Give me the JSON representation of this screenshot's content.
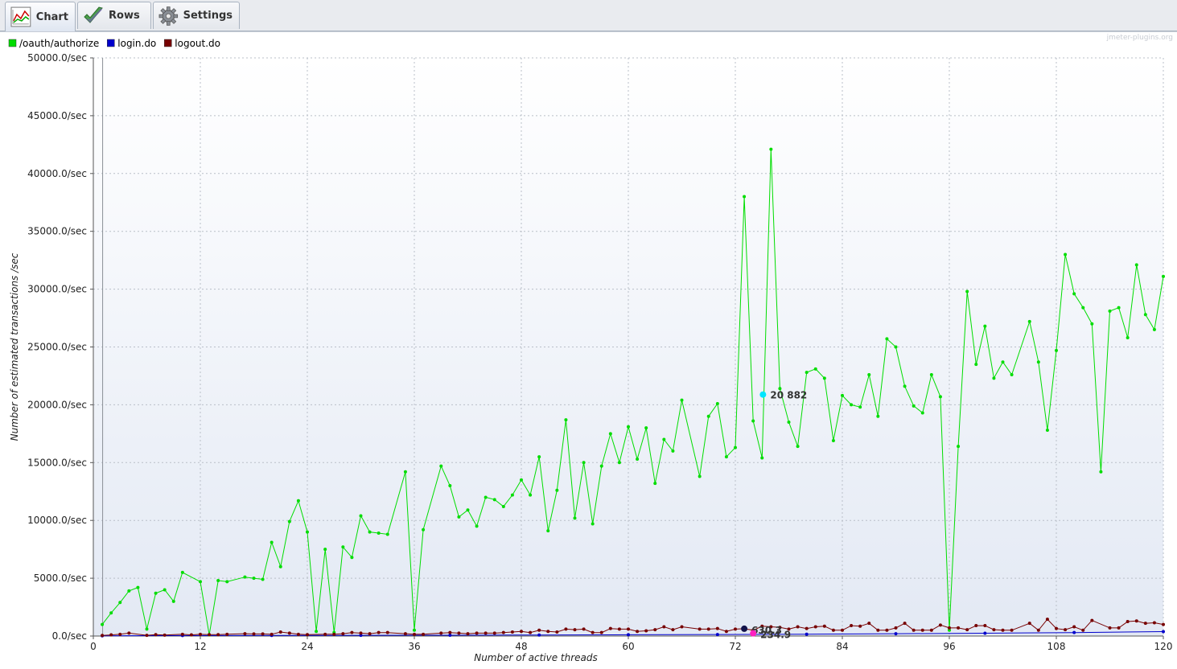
{
  "tabs": [
    {
      "label": "Chart",
      "icon": "chart-icon",
      "active": true
    },
    {
      "label": "Rows",
      "icon": "checkmark-icon",
      "active": false
    },
    {
      "label": "Settings",
      "icon": "gear-icon",
      "active": false
    }
  ],
  "watermark": "jmeter-plugins.org",
  "colors": {
    "authorize": "#00dd00",
    "login": "#0000cc",
    "logout": "#770000",
    "marker_cyan": "#00e5ff",
    "marker_navy": "#12124a",
    "marker_magenta": "#ff20c0"
  },
  "hover_labels": {
    "green": "20 882",
    "navy": "630.3",
    "magenta": "234.9"
  },
  "chart_data": {
    "type": "line",
    "xlabel": "Number of active threads",
    "ylabel": "Number of estimated transactions /sec",
    "xlim": [
      0,
      120
    ],
    "ylim": [
      0,
      50000
    ],
    "x_ticks": [
      0,
      12,
      24,
      36,
      48,
      60,
      72,
      84,
      96,
      108,
      120
    ],
    "y_ticks": [
      "0.0/sec",
      "5000.0/sec",
      "10000.0/sec",
      "15000.0/sec",
      "20000.0/sec",
      "25000.0/sec",
      "30000.0/sec",
      "35000.0/sec",
      "40000.0/sec",
      "45000.0/sec",
      "50000.0/sec"
    ],
    "grid": true,
    "legend_position": "top-left",
    "series": [
      {
        "name": "/oauth/authorize",
        "color": "#00dd00",
        "points": [
          [
            1,
            1000
          ],
          [
            2,
            2000
          ],
          [
            3,
            2900
          ],
          [
            4,
            3900
          ],
          [
            5,
            4200
          ],
          [
            6,
            600
          ],
          [
            7,
            3700
          ],
          [
            8,
            4000
          ],
          [
            9,
            3000
          ],
          [
            10,
            5500
          ],
          [
            12,
            4700
          ],
          [
            13,
            100
          ],
          [
            14,
            4800
          ],
          [
            15,
            4700
          ],
          [
            17,
            5100
          ],
          [
            18,
            5000
          ],
          [
            19,
            4900
          ],
          [
            20,
            8100
          ],
          [
            21,
            6000
          ],
          [
            22,
            9900
          ],
          [
            23,
            11700
          ],
          [
            24,
            9000
          ],
          [
            25,
            400
          ],
          [
            26,
            7500
          ],
          [
            27,
            300
          ],
          [
            28,
            7700
          ],
          [
            29,
            6800
          ],
          [
            30,
            10400
          ],
          [
            31,
            9000
          ],
          [
            32,
            8900
          ],
          [
            33,
            8800
          ],
          [
            35,
            14200
          ],
          [
            36,
            500
          ],
          [
            37,
            9200
          ],
          [
            39,
            14700
          ],
          [
            40,
            13000
          ],
          [
            41,
            10300
          ],
          [
            42,
            10900
          ],
          [
            43,
            9500
          ],
          [
            44,
            12000
          ],
          [
            45,
            11800
          ],
          [
            46,
            11200
          ],
          [
            47,
            12200
          ],
          [
            48,
            13500
          ],
          [
            49,
            12200
          ],
          [
            50,
            15500
          ],
          [
            51,
            9100
          ],
          [
            52,
            12600
          ],
          [
            53,
            18700
          ],
          [
            54,
            10200
          ],
          [
            55,
            15000
          ],
          [
            56,
            9700
          ],
          [
            57,
            14700
          ],
          [
            58,
            17500
          ],
          [
            59,
            15000
          ],
          [
            60,
            18100
          ],
          [
            61,
            15300
          ],
          [
            62,
            18000
          ],
          [
            63,
            13200
          ],
          [
            64,
            17000
          ],
          [
            65,
            16000
          ],
          [
            66,
            20400
          ],
          [
            68,
            13800
          ],
          [
            69,
            19000
          ],
          [
            70,
            20100
          ],
          [
            71,
            15500
          ],
          [
            72,
            16300
          ],
          [
            73,
            38000
          ],
          [
            74,
            18600
          ],
          [
            75,
            15400
          ],
          [
            76,
            42100
          ],
          [
            77,
            21400
          ],
          [
            78,
            18500
          ],
          [
            79,
            16400
          ],
          [
            80,
            22800
          ],
          [
            81,
            23100
          ],
          [
            82,
            22300
          ],
          [
            83,
            16900
          ],
          [
            84,
            20800
          ],
          [
            85,
            20000
          ],
          [
            86,
            19800
          ],
          [
            87,
            22600
          ],
          [
            88,
            19000
          ],
          [
            89,
            25700
          ],
          [
            90,
            25000
          ],
          [
            91,
            21600
          ],
          [
            92,
            19900
          ],
          [
            93,
            19300
          ],
          [
            94,
            22600
          ],
          [
            95,
            20700
          ],
          [
            96,
            500
          ],
          [
            97,
            16400
          ],
          [
            98,
            29800
          ],
          [
            99,
            23500
          ],
          [
            100,
            26800
          ],
          [
            101,
            22300
          ],
          [
            102,
            23700
          ],
          [
            103,
            22600
          ],
          [
            105,
            27200
          ],
          [
            106,
            23700
          ],
          [
            107,
            17800
          ],
          [
            108,
            24700
          ],
          [
            109,
            33000
          ],
          [
            110,
            29600
          ],
          [
            111,
            28400
          ],
          [
            112,
            27000
          ],
          [
            113,
            14200
          ],
          [
            114,
            28100
          ],
          [
            115,
            28400
          ],
          [
            116,
            25800
          ],
          [
            117,
            32100
          ],
          [
            118,
            27800
          ],
          [
            119,
            26500
          ],
          [
            120,
            31100
          ]
        ]
      },
      {
        "name": "login.do",
        "color": "#0000cc",
        "points": [
          [
            1,
            20
          ],
          [
            10,
            40
          ],
          [
            20,
            50
          ],
          [
            30,
            60
          ],
          [
            40,
            70
          ],
          [
            50,
            90
          ],
          [
            60,
            110
          ],
          [
            70,
            130
          ],
          [
            80,
            160
          ],
          [
            90,
            200
          ],
          [
            100,
            240
          ],
          [
            110,
            300
          ],
          [
            120,
            380
          ]
        ]
      },
      {
        "name": "logout.do",
        "color": "#770000",
        "points": [
          [
            1,
            50
          ],
          [
            2,
            100
          ],
          [
            3,
            150
          ],
          [
            4,
            250
          ],
          [
            6,
            60
          ],
          [
            7,
            120
          ],
          [
            8,
            80
          ],
          [
            10,
            150
          ],
          [
            11,
            100
          ],
          [
            12,
            150
          ],
          [
            13,
            120
          ],
          [
            14,
            120
          ],
          [
            15,
            150
          ],
          [
            17,
            200
          ],
          [
            18,
            180
          ],
          [
            19,
            180
          ],
          [
            20,
            150
          ],
          [
            21,
            350
          ],
          [
            22,
            250
          ],
          [
            23,
            150
          ],
          [
            24,
            120
          ],
          [
            26,
            150
          ],
          [
            27,
            150
          ],
          [
            28,
            200
          ],
          [
            29,
            300
          ],
          [
            30,
            250
          ],
          [
            31,
            200
          ],
          [
            32,
            300
          ],
          [
            33,
            300
          ],
          [
            35,
            200
          ],
          [
            36,
            150
          ],
          [
            37,
            150
          ],
          [
            39,
            250
          ],
          [
            40,
            300
          ],
          [
            41,
            250
          ],
          [
            42,
            200
          ],
          [
            43,
            250
          ],
          [
            44,
            250
          ],
          [
            45,
            250
          ],
          [
            46,
            300
          ],
          [
            47,
            350
          ],
          [
            48,
            400
          ],
          [
            49,
            300
          ],
          [
            50,
            500
          ],
          [
            51,
            400
          ],
          [
            52,
            350
          ],
          [
            53,
            600
          ],
          [
            54,
            550
          ],
          [
            55,
            600
          ],
          [
            56,
            300
          ],
          [
            57,
            300
          ],
          [
            58,
            650
          ],
          [
            59,
            600
          ],
          [
            60,
            600
          ],
          [
            61,
            400
          ],
          [
            62,
            450
          ],
          [
            63,
            550
          ],
          [
            64,
            800
          ],
          [
            65,
            550
          ],
          [
            66,
            800
          ],
          [
            68,
            600
          ],
          [
            69,
            600
          ],
          [
            70,
            650
          ],
          [
            71,
            400
          ],
          [
            72,
            600
          ],
          [
            73,
            630
          ],
          [
            74,
            500
          ],
          [
            75,
            850
          ],
          [
            76,
            800
          ],
          [
            77,
            750
          ],
          [
            78,
            600
          ],
          [
            79,
            800
          ],
          [
            80,
            650
          ],
          [
            81,
            800
          ],
          [
            82,
            850
          ],
          [
            83,
            500
          ],
          [
            84,
            500
          ],
          [
            85,
            900
          ],
          [
            86,
            850
          ],
          [
            87,
            1100
          ],
          [
            88,
            500
          ],
          [
            89,
            500
          ],
          [
            90,
            700
          ],
          [
            91,
            1100
          ],
          [
            92,
            500
          ],
          [
            93,
            500
          ],
          [
            94,
            500
          ],
          [
            95,
            950
          ],
          [
            96,
            700
          ],
          [
            97,
            700
          ],
          [
            98,
            550
          ],
          [
            99,
            900
          ],
          [
            100,
            900
          ],
          [
            101,
            550
          ],
          [
            102,
            500
          ],
          [
            103,
            500
          ],
          [
            105,
            1100
          ],
          [
            106,
            500
          ],
          [
            107,
            1450
          ],
          [
            108,
            650
          ],
          [
            109,
            550
          ],
          [
            110,
            800
          ],
          [
            111,
            500
          ],
          [
            112,
            1350
          ],
          [
            114,
            700
          ],
          [
            115,
            700
          ],
          [
            116,
            1250
          ],
          [
            117,
            1300
          ],
          [
            118,
            1100
          ],
          [
            119,
            1150
          ],
          [
            120,
            1000
          ]
        ]
      }
    ]
  }
}
